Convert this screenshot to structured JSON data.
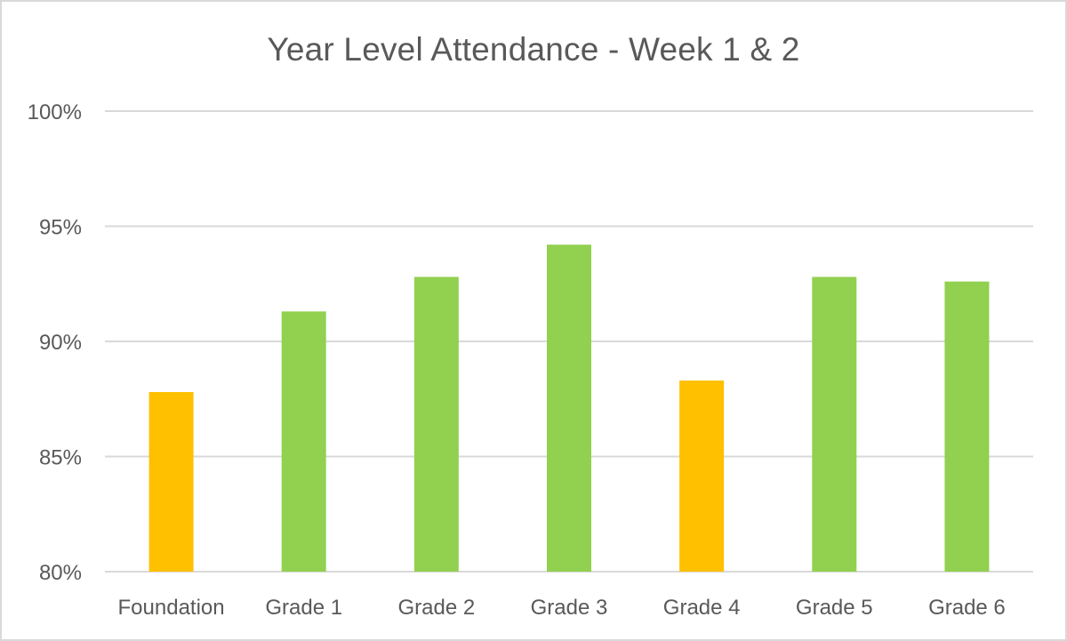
{
  "chart_data": {
    "type": "bar",
    "title": "Year Level Attendance - Week 1 & 2",
    "xlabel": "",
    "ylabel": "",
    "categories": [
      "Foundation",
      "Grade 1",
      "Grade 2",
      "Grade 3",
      "Grade 4",
      "Grade 5",
      "Grade 6"
    ],
    "values": [
      87.8,
      91.3,
      92.8,
      94.2,
      88.3,
      92.8,
      92.6
    ],
    "value_unit": "%",
    "bar_colors": [
      "#FFC000",
      "#92D050",
      "#92D050",
      "#92D050",
      "#FFC000",
      "#92D050",
      "#92D050"
    ],
    "ylim": [
      80,
      100
    ],
    "yticks": [
      80,
      85,
      90,
      95,
      100
    ],
    "ytick_labels": [
      "80%",
      "85%",
      "90%",
      "95%",
      "100%"
    ],
    "grid": true,
    "legend": "none"
  },
  "colors": {
    "gridline": "#d9d9d9",
    "text": "#595959",
    "border": "#d9d9d9"
  }
}
